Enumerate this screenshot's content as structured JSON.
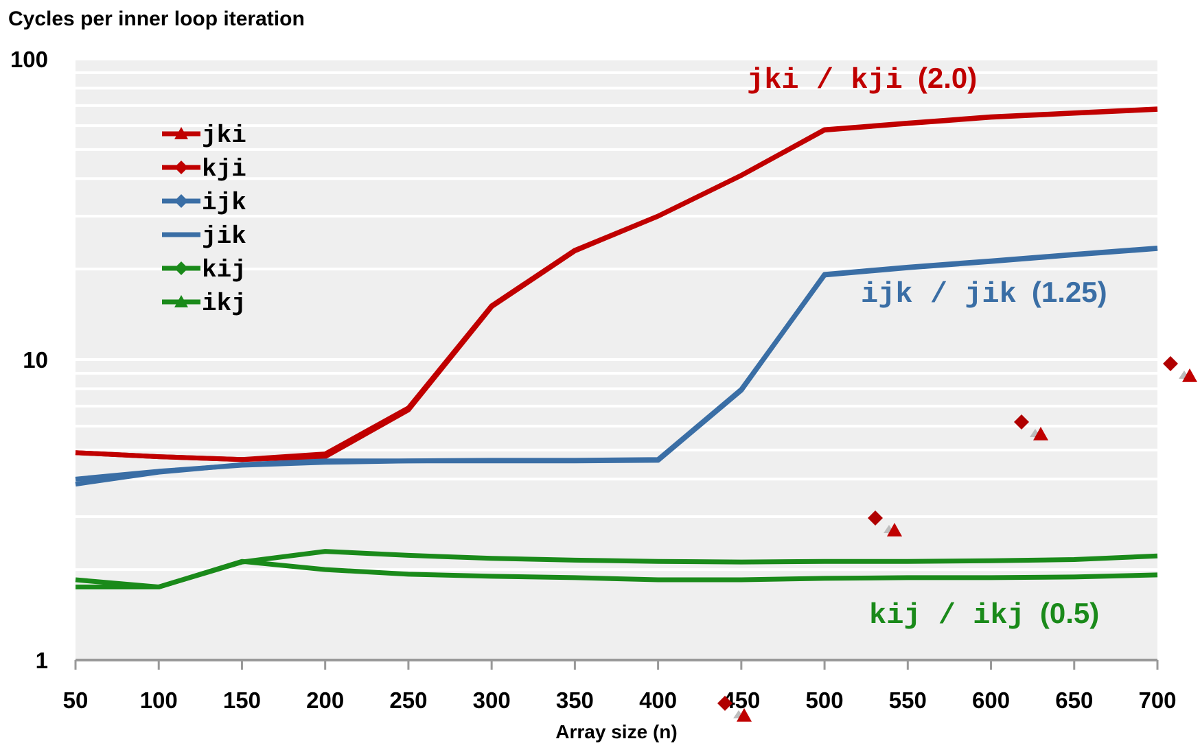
{
  "chart_data": {
    "type": "line",
    "title": "",
    "ylabel": "Cycles per inner loop iteration",
    "xlabel": "Array size (n)",
    "y_scale": "log",
    "ylim": [
      1,
      100
    ],
    "y_ticks": [
      "1",
      "10",
      "100"
    ],
    "x": [
      50,
      100,
      150,
      200,
      250,
      300,
      350,
      400,
      450,
      500,
      550,
      600,
      650,
      700
    ],
    "x_ticks": [
      "50",
      "100",
      "150",
      "200",
      "250",
      "300",
      "350",
      "400",
      "450",
      "500",
      "550",
      "600",
      "650",
      "700"
    ],
    "grid": true,
    "legend_position": "top-left",
    "series": [
      {
        "name": "jki",
        "color": "#c00000",
        "marker": "triangle",
        "values": [
          4.9,
          4.75,
          4.65,
          4.75,
          6.8,
          15,
          23,
          30,
          41,
          58,
          61,
          64,
          66,
          68
        ]
      },
      {
        "name": "kji",
        "color": "#c00000",
        "marker": "diamond",
        "values": [
          4.9,
          4.75,
          4.65,
          4.85,
          6.9,
          15.1,
          23.1,
          30,
          41,
          58.2,
          61.2,
          64.2,
          66.2,
          68.2
        ]
      },
      {
        "name": "ijk",
        "color": "#3a6ea5",
        "marker": "diamond",
        "values": [
          4.0,
          4.25,
          4.45,
          4.55,
          4.6,
          4.6,
          4.6,
          4.62,
          7.9,
          19.2,
          20.3,
          21.3,
          22.4,
          23.5
        ]
      },
      {
        "name": "jik",
        "color": "#3a6ea5",
        "marker": "dash",
        "values": [
          3.85,
          4.22,
          4.47,
          4.6,
          4.6,
          4.62,
          4.62,
          4.65,
          7.95,
          19.1,
          20.2,
          21.2,
          22.3,
          23.4
        ]
      },
      {
        "name": "kij",
        "color": "#1a8a1a",
        "marker": "diamond",
        "values": [
          1.75,
          1.75,
          2.13,
          2.0,
          1.93,
          1.9,
          1.88,
          1.85,
          1.85,
          1.87,
          1.88,
          1.88,
          1.89,
          1.92
        ]
      },
      {
        "name": "ikj",
        "color": "#1a8a1a",
        "marker": "triangle",
        "values": [
          1.85,
          1.75,
          2.12,
          2.3,
          2.23,
          2.18,
          2.15,
          2.13,
          2.12,
          2.13,
          2.13,
          2.14,
          2.16,
          2.22
        ]
      }
    ],
    "annotations": [
      {
        "main": "jki / kji",
        "ratio": "(2.0)",
        "color": "#c00000"
      },
      {
        "main": "ijk / jik",
        "ratio": "(1.25)",
        "color": "#3a6ea5"
      },
      {
        "main": "kij / ikj",
        "ratio": "(0.5)",
        "color": "#1a8a1a"
      }
    ]
  }
}
